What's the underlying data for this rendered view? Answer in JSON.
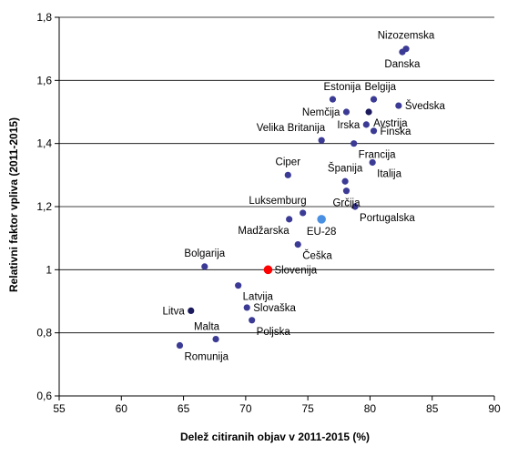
{
  "chart_data": {
    "type": "scatter",
    "xlabel": "Delež citiranih objav v 2011-2015 (%)",
    "ylabel": "Relativni faktor vpliva (2011-2015)",
    "xlim": [
      55,
      90
    ],
    "ylim": [
      0.6,
      1.8
    ],
    "xticks": [
      55,
      60,
      65,
      70,
      75,
      80,
      85,
      90
    ],
    "xtick_labels": [
      "55",
      "60",
      "65",
      "70",
      "75",
      "80",
      "85",
      "90"
    ],
    "yticks": [
      0.6,
      0.8,
      1.0,
      1.2,
      1.4,
      1.6,
      1.8
    ],
    "ytick_labels": [
      "0,6",
      "0,8",
      "1",
      "1,2",
      "1,4",
      "1,6",
      "1,8"
    ],
    "grid": "horizontal",
    "colors": {
      "default": "#3b3b96",
      "dark": "#1a1a5c",
      "eu": "#4a90e2",
      "highlight": "#ff0000",
      "eu_label": "#4a90e2",
      "highlight_label": "#ff0000"
    },
    "points": [
      {
        "label": "Nizozemska",
        "x": 82.9,
        "y": 1.7,
        "color": "default",
        "label_pos": "top"
      },
      {
        "label": "Danska",
        "x": 82.6,
        "y": 1.69,
        "color": "default",
        "label_pos": "bottom"
      },
      {
        "label": "Estonija",
        "x": 77.0,
        "y": 1.54,
        "color": "default",
        "label_pos": "top-right"
      },
      {
        "label": "Belgija",
        "x": 80.3,
        "y": 1.54,
        "color": "default",
        "label_pos": "top-right"
      },
      {
        "label": "Švedska",
        "x": 82.3,
        "y": 1.52,
        "color": "default",
        "label_pos": "right"
      },
      {
        "label": "Nemčija",
        "x": 78.1,
        "y": 1.5,
        "color": "default",
        "label_pos": "left"
      },
      {
        "label": "Avstrija",
        "x": 79.9,
        "y": 1.5,
        "color": "dark",
        "label_pos": "bottom-right"
      },
      {
        "label": "Irska",
        "x": 79.7,
        "y": 1.46,
        "color": "default",
        "label_pos": "left"
      },
      {
        "label": "Finska",
        "x": 80.3,
        "y": 1.44,
        "color": "default",
        "label_pos": "right"
      },
      {
        "label": "Velika Britanija",
        "x": 76.1,
        "y": 1.41,
        "color": "default",
        "label_pos": "top-left"
      },
      {
        "label": "Francija",
        "x": 78.7,
        "y": 1.4,
        "color": "default",
        "label_pos": "bottom-right"
      },
      {
        "label": "Italija",
        "x": 80.2,
        "y": 1.34,
        "color": "default",
        "label_pos": "bottom-right"
      },
      {
        "label": "Ciper",
        "x": 73.4,
        "y": 1.3,
        "color": "default",
        "label_pos": "top"
      },
      {
        "label": "Španija",
        "x": 78.0,
        "y": 1.28,
        "color": "default",
        "label_pos": "top"
      },
      {
        "label": "Grčija",
        "x": 78.1,
        "y": 1.25,
        "color": "default",
        "label_pos": "bottom"
      },
      {
        "label": "Portugalska",
        "x": 78.8,
        "y": 1.2,
        "color": "default",
        "label_pos": "bottom-right"
      },
      {
        "label": "Luksemburg",
        "x": 74.6,
        "y": 1.18,
        "color": "default",
        "label_pos": "top-left"
      },
      {
        "label": "Madžarska",
        "x": 73.5,
        "y": 1.16,
        "color": "default",
        "label_pos": "bottom-left"
      },
      {
        "label": "EU-28",
        "x": 76.1,
        "y": 1.16,
        "color": "eu",
        "label_pos": "bottom",
        "size": "large"
      },
      {
        "label": "Češka",
        "x": 74.2,
        "y": 1.08,
        "color": "default",
        "label_pos": "bottom-right"
      },
      {
        "label": "Bolgarija",
        "x": 66.7,
        "y": 1.01,
        "color": "default",
        "label_pos": "top"
      },
      {
        "label": "Slovenija",
        "x": 71.8,
        "y": 1.0,
        "color": "highlight",
        "label_pos": "right",
        "size": "large"
      },
      {
        "label": "Latvija",
        "x": 69.4,
        "y": 0.95,
        "color": "default",
        "label_pos": "bottom-right"
      },
      {
        "label": "Slovaška",
        "x": 70.1,
        "y": 0.88,
        "color": "default",
        "label_pos": "right"
      },
      {
        "label": "Litva",
        "x": 65.6,
        "y": 0.87,
        "color": "dark",
        "label_pos": "left"
      },
      {
        "label": "Poljska",
        "x": 70.5,
        "y": 0.84,
        "color": "default",
        "label_pos": "bottom-right"
      },
      {
        "label": "Malta",
        "x": 67.6,
        "y": 0.78,
        "color": "default",
        "label_pos": "top-left"
      },
      {
        "label": "Romunija",
        "x": 64.7,
        "y": 0.76,
        "color": "default",
        "label_pos": "bottom-right"
      }
    ]
  }
}
